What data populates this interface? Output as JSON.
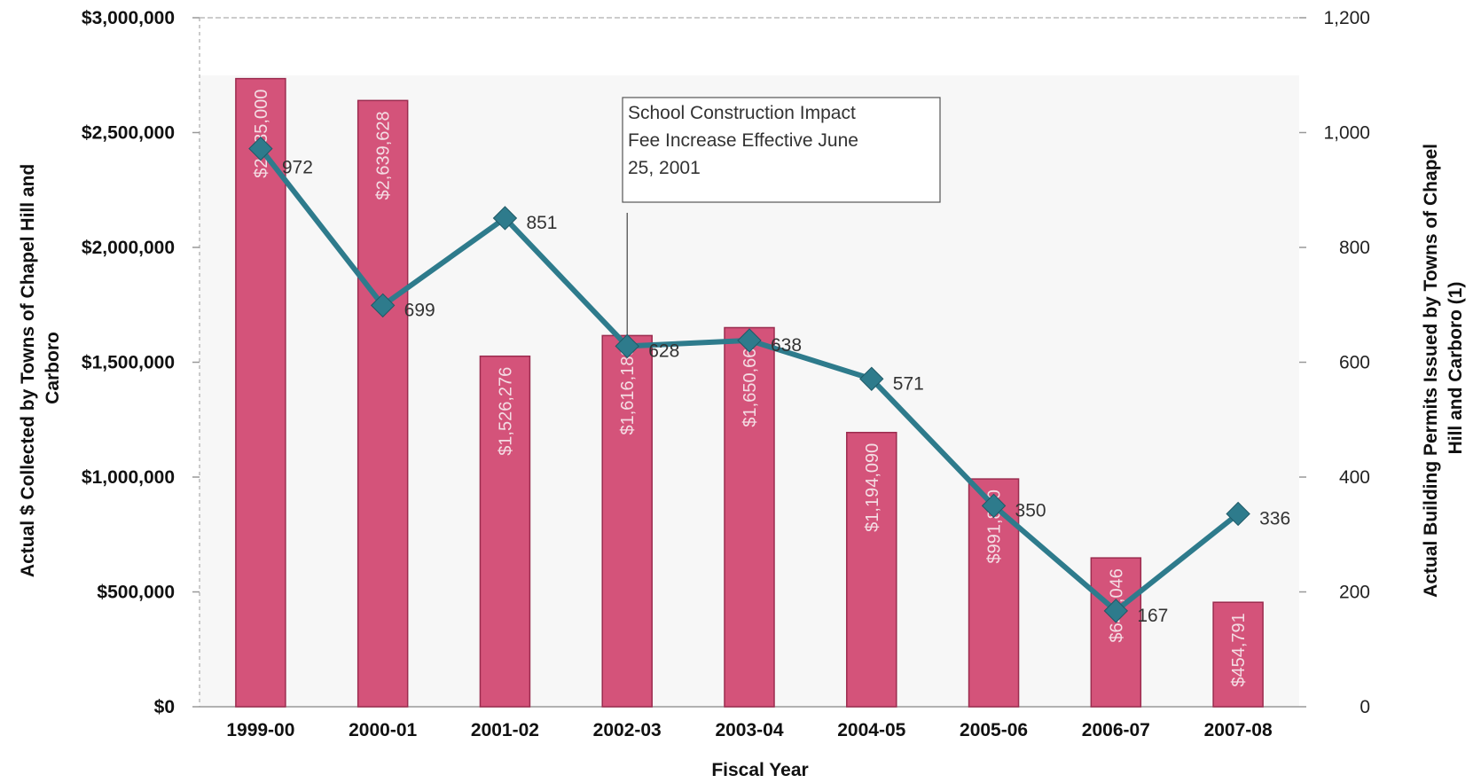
{
  "chart_data": {
    "type": "bar+line",
    "categories": [
      "1999-00",
      "2000-01",
      "2001-02",
      "2002-03",
      "2003-04",
      "2004-05",
      "2005-06",
      "2006-07",
      "2007-08"
    ],
    "series": [
      {
        "type": "bar",
        "axis": "left",
        "values": [
          2735000,
          2639628,
          1526276,
          1616188,
          1650664,
          1194090,
          991880,
          648046,
          454791
        ],
        "labels": [
          "$2,735,000",
          "$2,639,628",
          "$1,526,276",
          "$1,616,188",
          "$1,650,664",
          "$1,194,090",
          "$991,880",
          "$648,046",
          "$454,791"
        ],
        "color": "#d4537a"
      },
      {
        "type": "line",
        "axis": "right",
        "values": [
          972,
          699,
          851,
          628,
          638,
          571,
          350,
          167,
          336
        ],
        "labels": [
          "972",
          "699",
          "851",
          "628",
          "638",
          "571",
          "350",
          "167",
          "336"
        ],
        "color": "#2e7b8c"
      }
    ],
    "xlabel": "Fiscal Year",
    "ylabel_left": "Actual $ Collected by Towns of Chapel Hill and Carboro",
    "ylabel_left_lines": [
      "Actual $ Collected by Towns of Chapel Hill and",
      "Carboro"
    ],
    "ylabel_right": "Actual Building Permits Issued by Towns of Chapel Hill and Carboro (1)",
    "ylabel_right_lines": [
      "Actual Building Permits Issued by Towns of Chapel",
      "Hill and Carboro (1)"
    ],
    "ylim_left": [
      0,
      3000000
    ],
    "ylim_right": [
      0,
      1200
    ],
    "yticks_left": [
      0,
      500000,
      1000000,
      1500000,
      2000000,
      2500000,
      3000000
    ],
    "ytick_labels_left": [
      "$0",
      "$500,000",
      "$1,000,000",
      "$1,500,000",
      "$2,000,000",
      "$2,500,000",
      "$3,000,000"
    ],
    "yticks_right": [
      0,
      200,
      400,
      600,
      800,
      1000,
      1200
    ],
    "ytick_labels_right": [
      "0",
      "200",
      "400",
      "600",
      "800",
      "1,000",
      "1,200"
    ],
    "annotation": {
      "lines": [
        "School Construction Impact",
        "Fee Increase Effective June",
        "25, 2001"
      ],
      "category": "2002-03"
    },
    "grid": false,
    "legend": "none"
  }
}
